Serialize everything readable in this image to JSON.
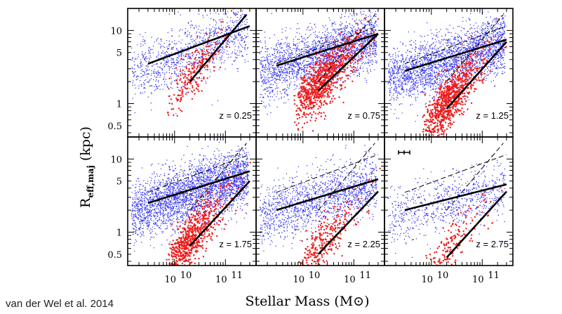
{
  "credit": "van der Wel et al. 2014",
  "chart_data": {
    "type": "scatter",
    "xlabel": "Stellar Mass (M⊙)",
    "ylabel": "Reff,maj (kpc)",
    "xscale": "log",
    "yscale": "log",
    "xlim": [
      1200000000.0,
      400000000000.0
    ],
    "ylim": [
      0.35,
      20
    ],
    "xticklabels": [
      "10^10",
      "10^11"
    ],
    "yticklabels": [
      "0.5",
      "1",
      "5",
      "10"
    ],
    "colors": {
      "late_type": "#2a2af0",
      "early_type": "#ee1c1c",
      "relation": "#000000"
    },
    "panels": [
      {
        "z_label": "z = 0.25",
        "late_type_fit": {
          "x": [
            3000000000.0,
            300000000000.0
          ],
          "y": [
            3.5,
            11.5
          ]
        },
        "early_type_fit": {
          "x": [
            20000000000.0,
            260000000000.0
          ],
          "y": [
            2.0,
            16.5
          ]
        },
        "late_type_points": 1100,
        "early_type_points": 220
      },
      {
        "z_label": "z = 0.75",
        "late_type_fit": {
          "x": [
            3000000000.0,
            300000000000.0
          ],
          "y": [
            3.3,
            9.0
          ]
        },
        "early_type_fit": {
          "x": [
            20000000000.0,
            300000000000.0
          ],
          "y": [
            1.5,
            9.0
          ]
        },
        "late_type_points": 2300,
        "early_type_points": 900
      },
      {
        "z_label": "z = 1.25",
        "late_type_fit": {
          "x": [
            3000000000.0,
            300000000000.0
          ],
          "y": [
            2.8,
            7.5
          ]
        },
        "early_type_fit": {
          "x": [
            20000000000.0,
            300000000000.0
          ],
          "y": [
            0.85,
            7.0
          ]
        },
        "late_type_points": 2600,
        "early_type_points": 850
      },
      {
        "z_label": "z = 1.75",
        "late_type_fit": {
          "x": [
            3000000000.0,
            300000000000.0
          ],
          "y": [
            2.5,
            6.8
          ]
        },
        "early_type_fit": {
          "x": [
            20000000000.0,
            300000000000.0
          ],
          "y": [
            0.65,
            5.0
          ]
        },
        "late_type_points": 3000,
        "early_type_points": 700
      },
      {
        "z_label": "z = 2.25",
        "late_type_fit": {
          "x": [
            3000000000.0,
            300000000000.0
          ],
          "y": [
            2.0,
            5.3
          ]
        },
        "early_type_fit": {
          "x": [
            20000000000.0,
            300000000000.0
          ],
          "y": [
            0.5,
            3.6
          ]
        },
        "late_type_points": 1500,
        "early_type_points": 300
      },
      {
        "z_label": "z = 2.75",
        "late_type_fit": {
          "x": [
            3000000000.0,
            300000000000.0
          ],
          "y": [
            2.0,
            4.5
          ]
        },
        "early_type_fit": {
          "x": [
            20000000000.0,
            300000000000.0
          ],
          "y": [
            0.45,
            3.6
          ]
        },
        "late_type_points": 800,
        "early_type_points": 180,
        "error_bar": true
      }
    ],
    "reference_lines": {
      "late_type": {
        "x": [
          3000000000.0,
          300000000000.0
        ],
        "y": [
          3.5,
          11.5
        ]
      },
      "early_type": {
        "x": [
          20000000000.0,
          260000000000.0
        ],
        "y": [
          2.0,
          16.5
        ]
      }
    }
  }
}
